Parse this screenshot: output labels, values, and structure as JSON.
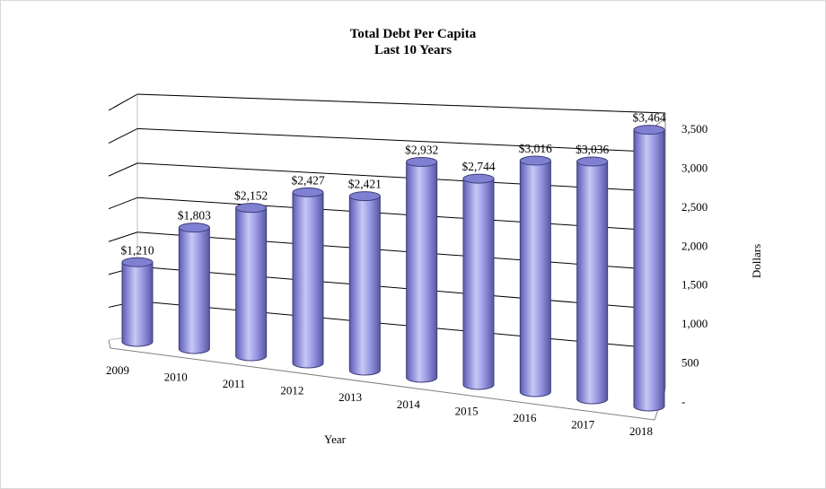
{
  "chart_data": {
    "type": "bar",
    "style": "3d-cylinder",
    "title": "Total Debt Per Capita",
    "subtitle": "Last 10 Years",
    "xlabel": "Year",
    "ylabel": "Dollars",
    "categories": [
      "2009",
      "2010",
      "2011",
      "2012",
      "2013",
      "2014",
      "2015",
      "2016",
      "2017",
      "2018"
    ],
    "values": [
      1210,
      1803,
      2152,
      2427,
      2421,
      2932,
      2744,
      3016,
      3036,
      3464
    ],
    "data_labels": [
      "$1,210",
      "$1,803",
      "$2,152",
      "$2,427",
      "$2,421",
      "$2,932",
      "$2,744",
      "$3,016",
      "$3,036",
      "$3,464"
    ],
    "ylim": [
      0,
      3500
    ],
    "yticks": [
      0,
      500,
      1000,
      1500,
      2000,
      2500,
      3000,
      3500
    ],
    "ytick_labels": [
      "-",
      "500",
      "1,000",
      "1,500",
      "2,000",
      "2,500",
      "3,000",
      "3,500"
    ],
    "grid": true,
    "axis_position": "right",
    "legend": "none",
    "colors": {
      "bar": "#9999e8",
      "bar_dark": "#4a4a9a",
      "bar_light": "#ccccf6",
      "grid": "#000000"
    }
  }
}
